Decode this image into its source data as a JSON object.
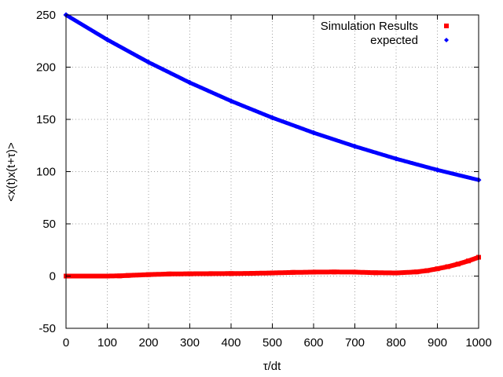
{
  "chart_data": {
    "type": "scatter",
    "xlabel": "τ/dt",
    "ylabel": "<x(t)x(t+τ)>",
    "xlim": [
      0,
      1000
    ],
    "ylim": [
      -50,
      250
    ],
    "xticks": [
      "0",
      "100",
      "200",
      "300",
      "400",
      "500",
      "600",
      "700",
      "800",
      "900",
      "1000"
    ],
    "yticks": [
      "-50",
      "0",
      "50",
      "100",
      "150",
      "200",
      "250"
    ],
    "grid": true,
    "legend_position": "top-right",
    "series": [
      {
        "name": "Simulation Results",
        "color": "#ff0000",
        "marker": "square",
        "x": [
          0,
          50,
          100,
          130,
          150,
          200,
          250,
          300,
          350,
          400,
          450,
          500,
          550,
          600,
          650,
          700,
          750,
          800,
          850,
          875,
          900,
          925,
          950,
          975,
          1000
        ],
        "y": [
          0,
          0,
          0,
          0.2,
          0.6,
          1.4,
          2.0,
          2.2,
          2.3,
          2.4,
          2.6,
          3.0,
          3.5,
          3.8,
          3.9,
          3.8,
          3.2,
          3.0,
          4.0,
          5.2,
          7.0,
          9.0,
          11.5,
          14.5,
          18.0
        ]
      },
      {
        "name": "expected",
        "color": "#0000ff",
        "marker": "diamond",
        "x": [
          0,
          100,
          200,
          300,
          400,
          500,
          600,
          700,
          800,
          900,
          1000
        ],
        "y": [
          250,
          226.3,
          204.7,
          185.2,
          167.6,
          151.6,
          137.2,
          124.2,
          112.3,
          101.6,
          92.0
        ]
      }
    ]
  }
}
